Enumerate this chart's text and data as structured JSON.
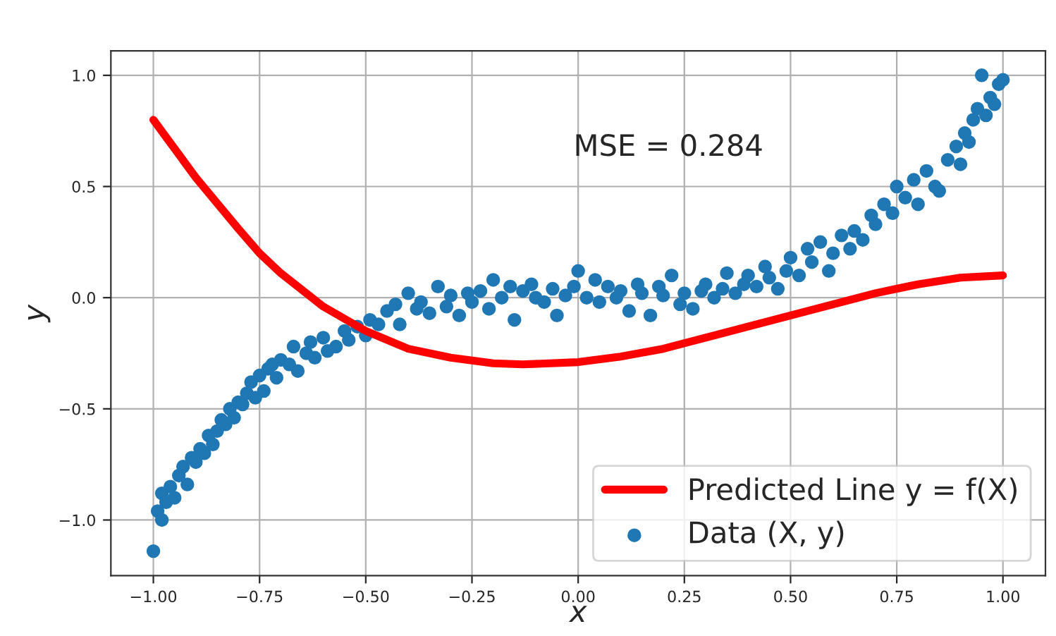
{
  "chart_data": {
    "type": "scatter",
    "xlabel": "x",
    "ylabel": "y",
    "annotations": [
      "MSE = 0.284"
    ],
    "xlim": [
      -1.1,
      1.1
    ],
    "xticks": [
      {
        "value": -1.0,
        "label": "−1.00"
      },
      {
        "value": -0.75,
        "label": "−0.75"
      },
      {
        "value": -0.5,
        "label": "−0.50"
      },
      {
        "value": -0.25,
        "label": "−0.25"
      },
      {
        "value": 0.0,
        "label": "0.00"
      },
      {
        "value": 0.25,
        "label": "0.25"
      },
      {
        "value": 0.5,
        "label": "0.50"
      },
      {
        "value": 0.75,
        "label": "0.75"
      },
      {
        "value": 1.0,
        "label": "1.00"
      }
    ],
    "ylim": [
      -1.25,
      1.11
    ],
    "yticks": [
      {
        "value": -1.0,
        "label": "−1.0"
      },
      {
        "value": -0.5,
        "label": "−0.5"
      },
      {
        "value": 0.0,
        "label": "0.0"
      },
      {
        "value": 0.5,
        "label": "0.5"
      },
      {
        "value": 1.0,
        "label": "1.0"
      }
    ],
    "grid": true,
    "legend": "bottom right",
    "series": [
      {
        "name": "Predicted Line y = f(X)",
        "type": "line",
        "color": "#ff0000",
        "marker": "none",
        "line_style": "solid",
        "x": [
          -1.0,
          -0.9,
          -0.8,
          -0.75,
          -0.7,
          -0.6,
          -0.5,
          -0.4,
          -0.3,
          -0.2,
          -0.13,
          0.0,
          0.1,
          0.2,
          0.3,
          0.4,
          0.5,
          0.6,
          0.7,
          0.75,
          0.8,
          0.9,
          1.0
        ],
        "values": [
          0.8,
          0.54,
          0.31,
          0.2,
          0.11,
          -0.04,
          -0.15,
          -0.23,
          -0.27,
          -0.295,
          -0.3,
          -0.29,
          -0.265,
          -0.23,
          -0.18,
          -0.13,
          -0.08,
          -0.03,
          0.02,
          0.04,
          0.06,
          0.09,
          0.1
        ]
      },
      {
        "name": "Data (X, y)",
        "color": "#1f77b4",
        "marker": "circle",
        "x": [
          -1.0,
          -0.99,
          -0.98,
          -0.98,
          -0.97,
          -0.96,
          -0.95,
          -0.94,
          -0.93,
          -0.92,
          -0.91,
          -0.9,
          -0.89,
          -0.88,
          -0.87,
          -0.86,
          -0.85,
          -0.84,
          -0.83,
          -0.82,
          -0.81,
          -0.8,
          -0.79,
          -0.78,
          -0.77,
          -0.76,
          -0.75,
          -0.74,
          -0.73,
          -0.72,
          -0.71,
          -0.7,
          -0.68,
          -0.67,
          -0.66,
          -0.64,
          -0.63,
          -0.62,
          -0.6,
          -0.59,
          -0.57,
          -0.55,
          -0.54,
          -0.52,
          -0.5,
          -0.49,
          -0.47,
          -0.45,
          -0.43,
          -0.42,
          -0.4,
          -0.38,
          -0.37,
          -0.35,
          -0.33,
          -0.31,
          -0.3,
          -0.28,
          -0.26,
          -0.25,
          -0.23,
          -0.21,
          -0.2,
          -0.18,
          -0.16,
          -0.15,
          -0.13,
          -0.11,
          -0.1,
          -0.08,
          -0.06,
          -0.05,
          -0.03,
          -0.01,
          0.0,
          0.02,
          0.04,
          0.05,
          0.07,
          0.09,
          0.1,
          0.12,
          0.14,
          0.15,
          0.17,
          0.19,
          0.2,
          0.22,
          0.24,
          0.25,
          0.27,
          0.29,
          0.3,
          0.32,
          0.34,
          0.35,
          0.37,
          0.39,
          0.4,
          0.42,
          0.44,
          0.45,
          0.47,
          0.49,
          0.5,
          0.52,
          0.54,
          0.55,
          0.57,
          0.59,
          0.6,
          0.62,
          0.64,
          0.65,
          0.67,
          0.69,
          0.7,
          0.72,
          0.74,
          0.75,
          0.77,
          0.79,
          0.8,
          0.82,
          0.84,
          0.85,
          0.87,
          0.89,
          0.9,
          0.91,
          0.92,
          0.93,
          0.94,
          0.95,
          0.96,
          0.97,
          0.98,
          0.99,
          1.0
        ],
        "values": [
          -1.14,
          -0.96,
          -1.0,
          -0.88,
          -0.92,
          -0.85,
          -0.9,
          -0.8,
          -0.76,
          -0.84,
          -0.72,
          -0.74,
          -0.68,
          -0.7,
          -0.62,
          -0.66,
          -0.6,
          -0.55,
          -0.57,
          -0.5,
          -0.54,
          -0.47,
          -0.48,
          -0.43,
          -0.38,
          -0.45,
          -0.35,
          -0.42,
          -0.32,
          -0.3,
          -0.36,
          -0.28,
          -0.3,
          -0.22,
          -0.33,
          -0.25,
          -0.2,
          -0.27,
          -0.18,
          -0.24,
          -0.22,
          -0.15,
          -0.19,
          -0.13,
          -0.17,
          -0.1,
          -0.12,
          -0.06,
          -0.03,
          -0.12,
          0.02,
          -0.05,
          -0.02,
          -0.07,
          0.05,
          -0.04,
          0.01,
          -0.08,
          0.02,
          -0.02,
          0.03,
          -0.05,
          0.08,
          0.0,
          0.05,
          -0.1,
          0.03,
          0.06,
          0.0,
          -0.02,
          0.04,
          -0.08,
          0.01,
          0.05,
          0.12,
          0.0,
          0.08,
          -0.02,
          0.05,
          0.0,
          0.03,
          -0.06,
          0.06,
          0.02,
          -0.08,
          0.05,
          0.01,
          0.1,
          -0.03,
          0.02,
          -0.05,
          0.03,
          0.06,
          0.0,
          0.04,
          0.11,
          0.02,
          0.06,
          0.1,
          0.05,
          0.14,
          0.09,
          0.04,
          0.12,
          0.18,
          0.1,
          0.22,
          0.16,
          0.25,
          0.12,
          0.2,
          0.28,
          0.22,
          0.3,
          0.26,
          0.37,
          0.33,
          0.42,
          0.38,
          0.5,
          0.45,
          0.53,
          0.42,
          0.57,
          0.5,
          0.48,
          0.62,
          0.68,
          0.6,
          0.74,
          0.7,
          0.8,
          0.85,
          1.0,
          0.82,
          0.9,
          0.87,
          0.96,
          0.98
        ]
      }
    ]
  }
}
